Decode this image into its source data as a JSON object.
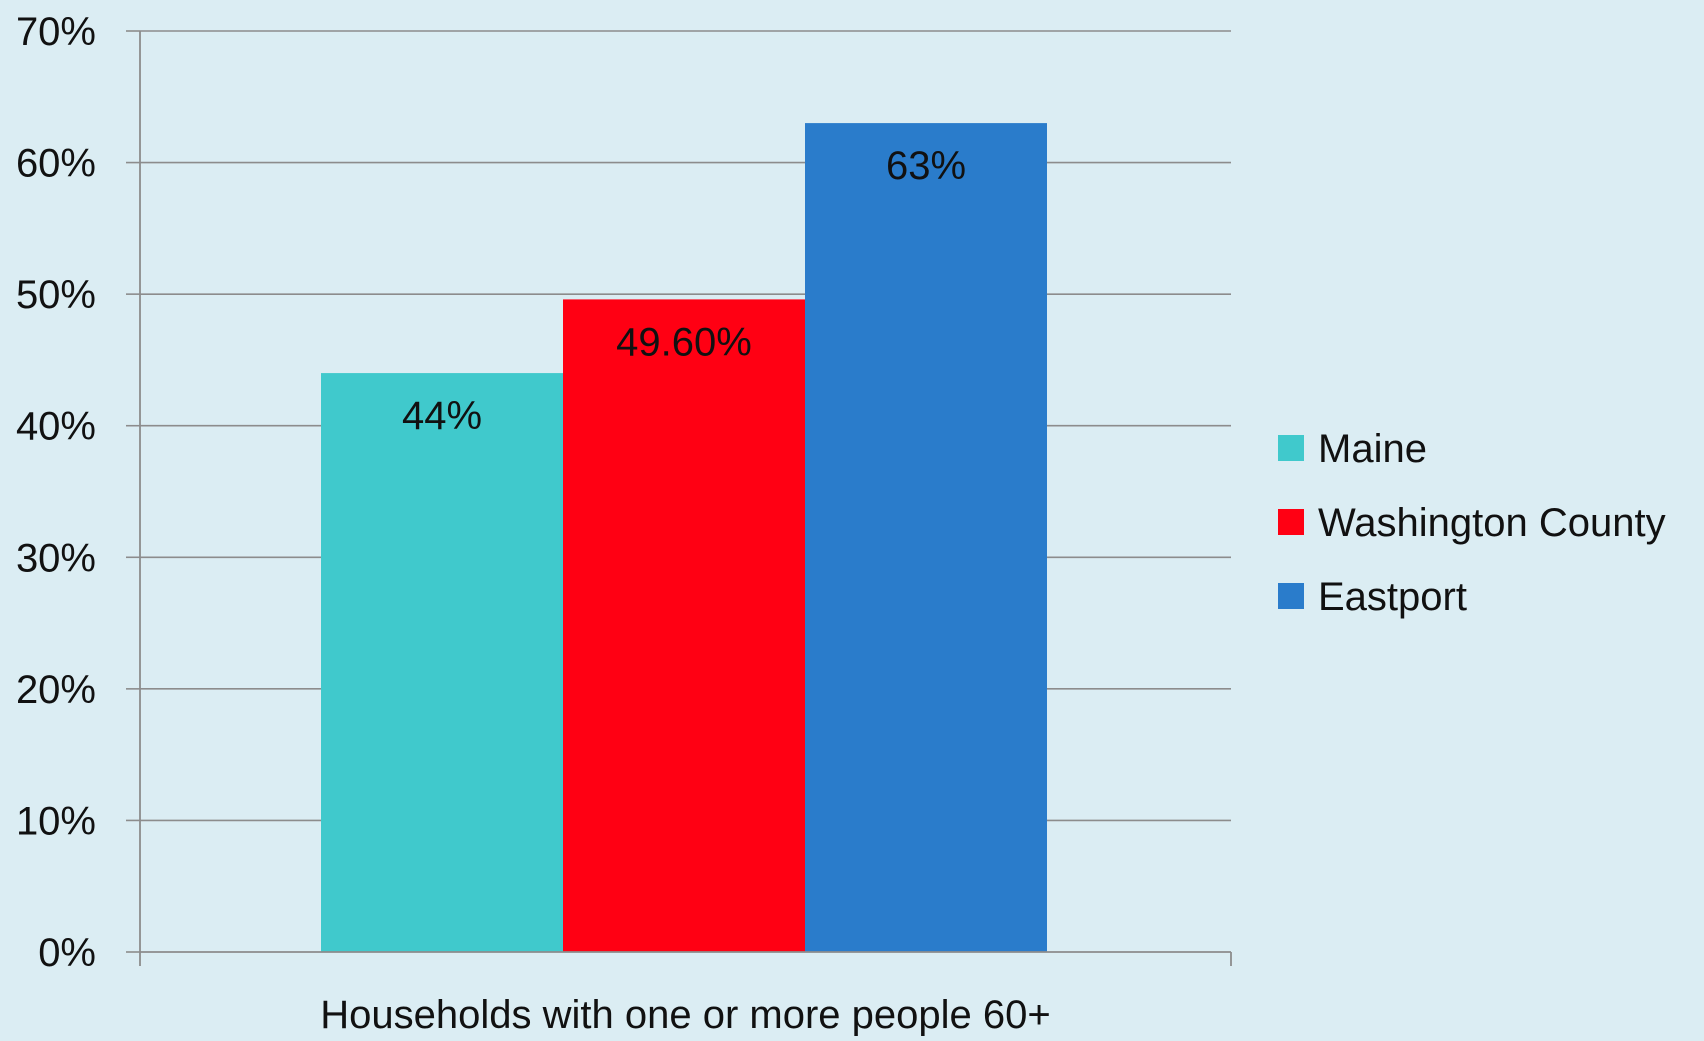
{
  "chart_data": {
    "type": "bar",
    "categories": [
      "Households with one or more people 60+"
    ],
    "series": [
      {
        "name": "Maine",
        "values": [
          44
        ],
        "data_label": "44%",
        "color": "#40c9cc"
      },
      {
        "name": "Washington County",
        "values": [
          49.6
        ],
        "data_label": "49.60%",
        "color": "#ff0013"
      },
      {
        "name": "Eastport",
        "values": [
          63
        ],
        "data_label": "63%",
        "color": "#2a7ccb"
      }
    ],
    "ylim": [
      0,
      70
    ],
    "ytick_values": [
      0,
      10,
      20,
      30,
      40,
      50,
      60,
      70
    ],
    "ytick_labels": [
      "0%",
      "10%",
      "20%",
      "30%",
      "40%",
      "50%",
      "60%",
      "70%"
    ],
    "grid": true,
    "legend_position": "right",
    "background_color": "#dbedf3",
    "gridline_color": "#8c8c8c"
  }
}
